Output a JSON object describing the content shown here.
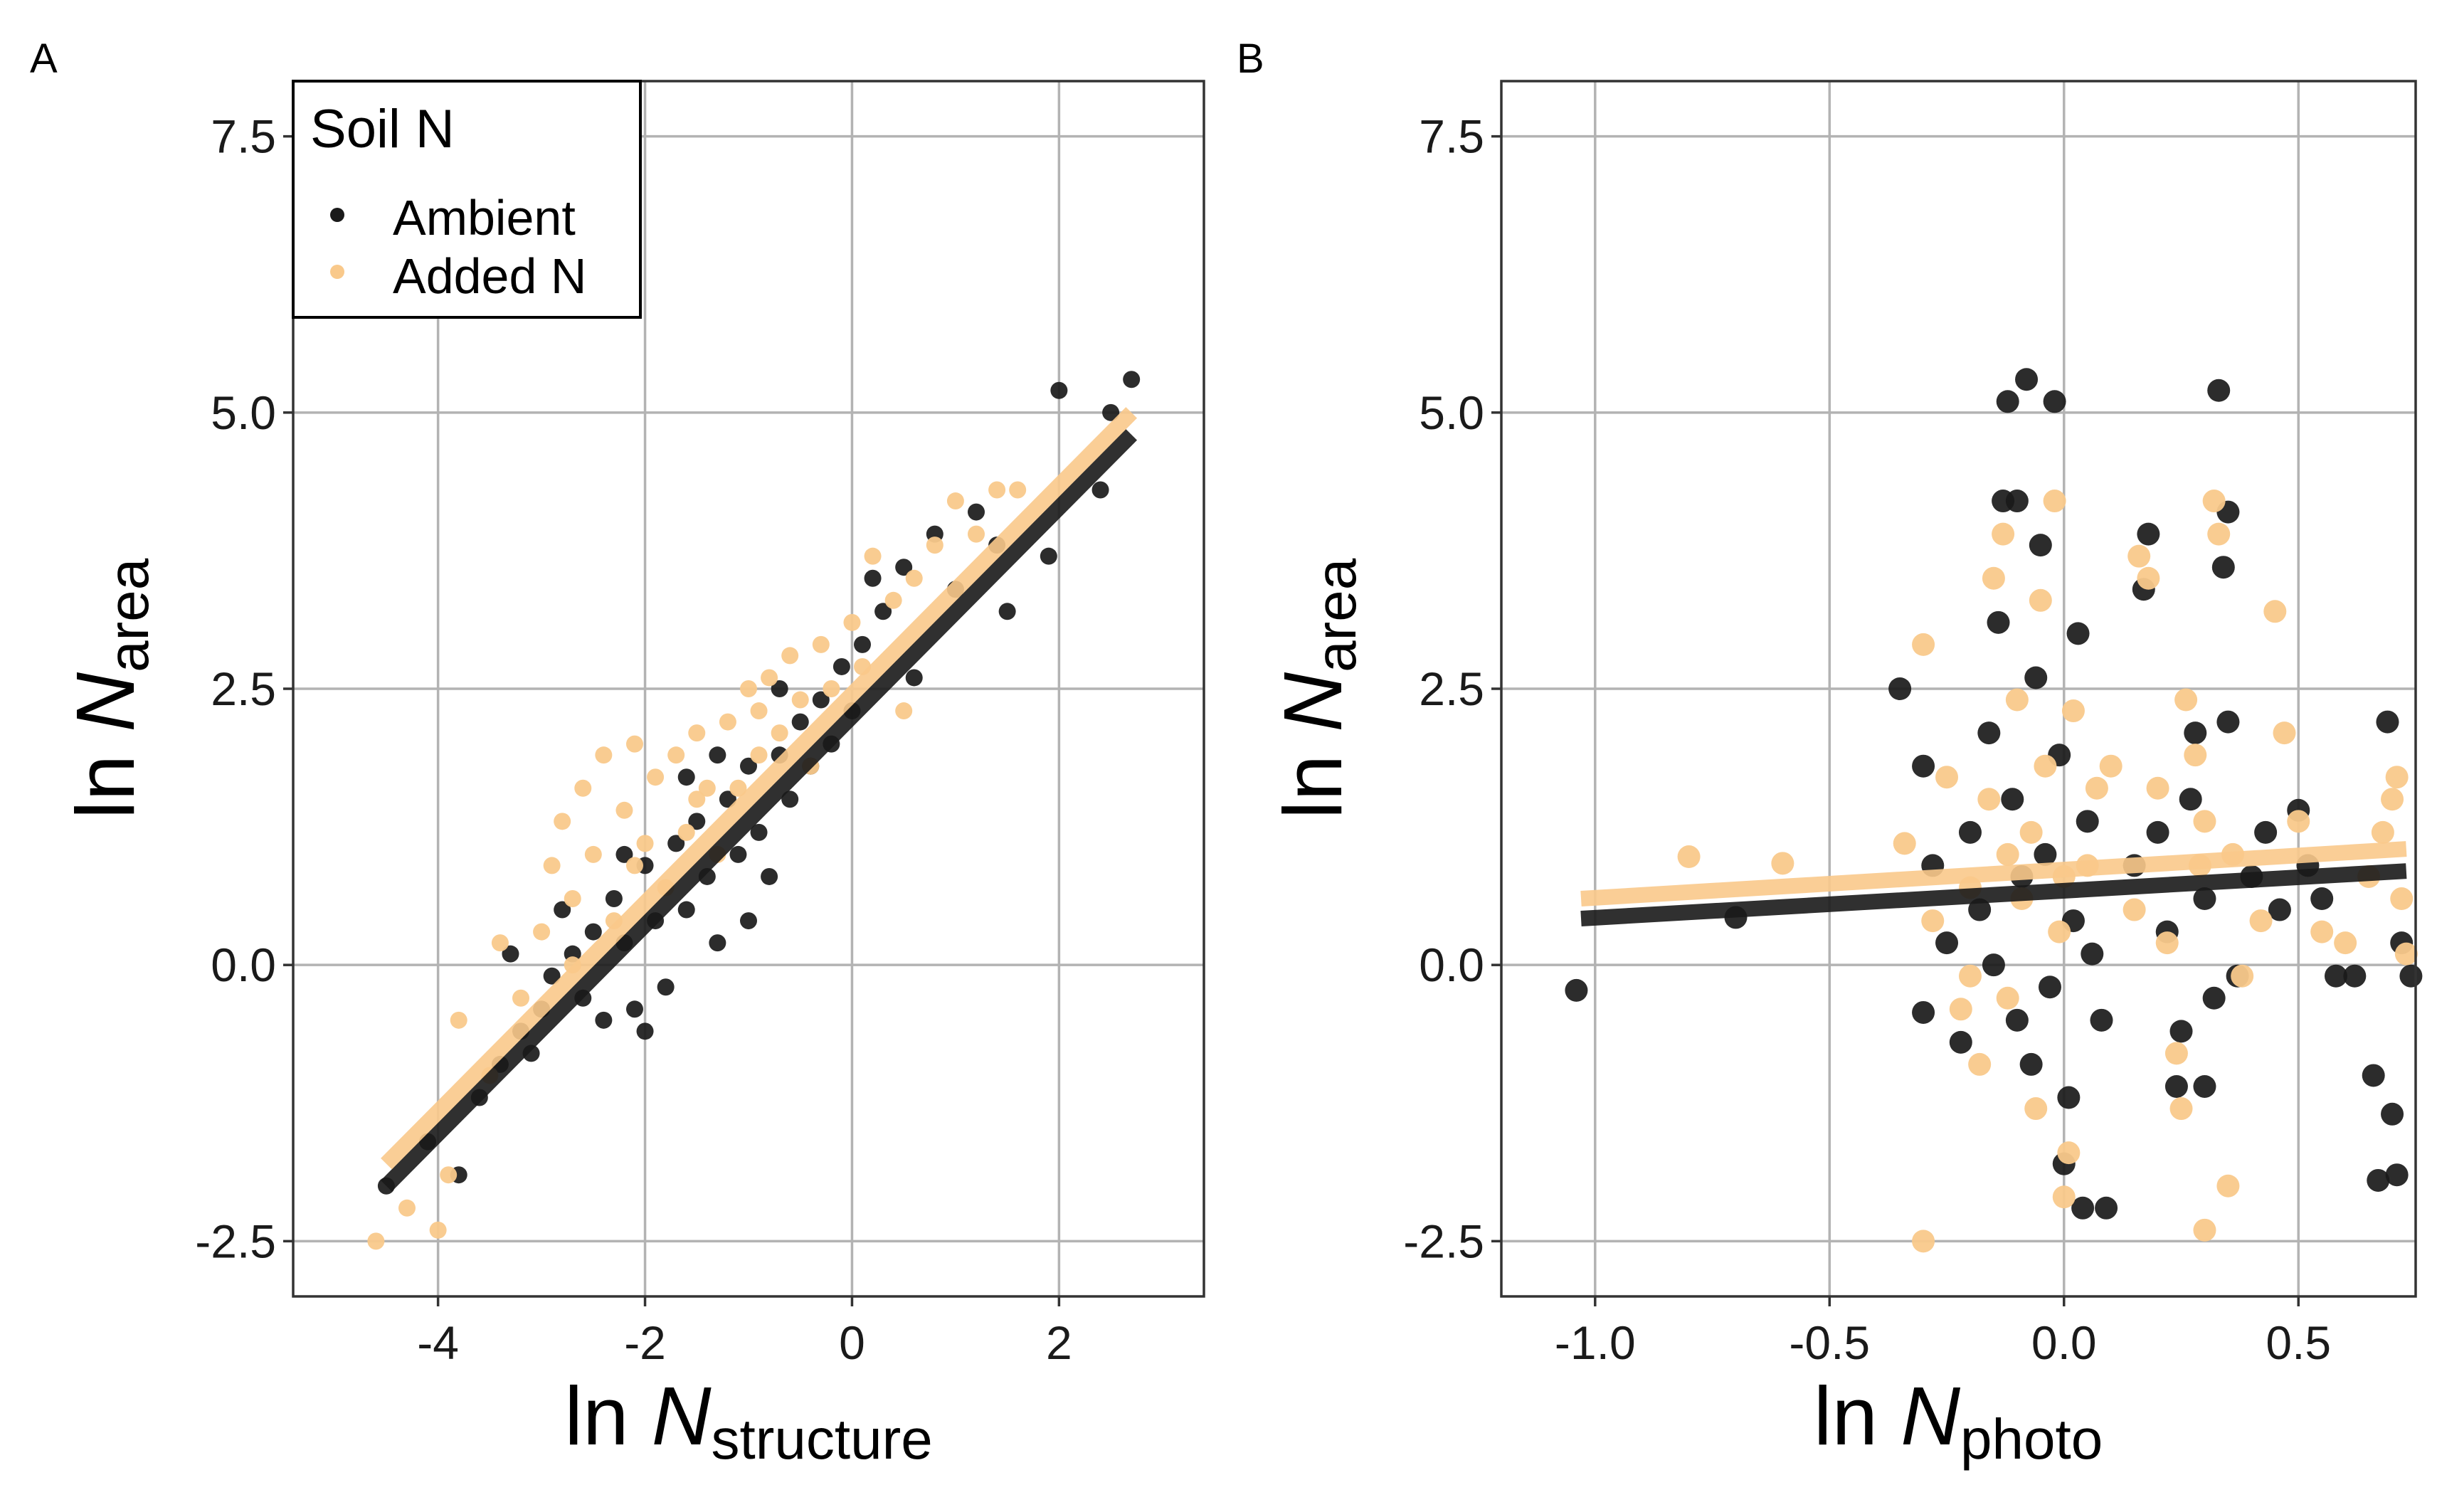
{
  "colors": {
    "ambient": "#1a1a1a",
    "added": "#f9c98b",
    "grid": "#b3b3b3"
  },
  "legend": {
    "title": "Soil N",
    "items": [
      {
        "label": "Ambient",
        "color": "#1a1a1a"
      },
      {
        "label": "Added N",
        "color": "#f9c98b"
      }
    ]
  },
  "chart_data": [
    {
      "panel": "A",
      "type": "scatter",
      "xlabel": {
        "prefix": "ln ",
        "var": "N",
        "sub": "structure"
      },
      "ylabel": {
        "prefix": "ln ",
        "var": "N",
        "sub": "area"
      },
      "xlim": [
        -5.4,
        3.4
      ],
      "ylim": [
        -3.0,
        8.0
      ],
      "xticks": [
        -4,
        -2,
        0,
        2
      ],
      "xtick_labels": [
        "-4",
        "-2",
        "0",
        "2"
      ],
      "yticks": [
        -2.5,
        0.0,
        2.5,
        5.0,
        7.5
      ],
      "ytick_labels": [
        "-2.5",
        "0.0",
        "2.5",
        "5.0",
        "7.5"
      ],
      "grid": true,
      "legend_position": "top-left",
      "fits": [
        {
          "series": "Ambient",
          "x": [
            -4.5,
            2.7
          ],
          "y": [
            -2.0,
            4.8
          ]
        },
        {
          "series": "Added N",
          "x": [
            -4.5,
            2.7
          ],
          "y": [
            -1.8,
            5.0
          ]
        }
      ],
      "series": [
        {
          "name": "Ambient",
          "points": [
            [
              -4.5,
              -2.0
            ],
            [
              -4.1,
              -1.6
            ],
            [
              -3.8,
              -1.9
            ],
            [
              -3.6,
              -1.2
            ],
            [
              -3.4,
              -0.9
            ],
            [
              -3.2,
              -0.6
            ],
            [
              -3.0,
              -0.4
            ],
            [
              -2.9,
              -0.1
            ],
            [
              -2.7,
              0.1
            ],
            [
              -2.6,
              -0.3
            ],
            [
              -2.5,
              0.3
            ],
            [
              -2.4,
              -0.5
            ],
            [
              -2.3,
              0.6
            ],
            [
              -2.2,
              0.2
            ],
            [
              -2.1,
              -0.4
            ],
            [
              -2.0,
              0.9
            ],
            [
              -1.9,
              0.4
            ],
            [
              -1.8,
              -0.2
            ],
            [
              -1.7,
              1.1
            ],
            [
              -1.6,
              0.5
            ],
            [
              -1.5,
              1.3
            ],
            [
              -1.4,
              0.8
            ],
            [
              -1.3,
              0.2
            ],
            [
              -1.2,
              1.5
            ],
            [
              -1.1,
              1.0
            ],
            [
              -1.0,
              1.8
            ],
            [
              -0.9,
              1.2
            ],
            [
              -0.8,
              0.8
            ],
            [
              -0.7,
              1.9
            ],
            [
              -0.6,
              1.5
            ],
            [
              -0.5,
              2.2
            ],
            [
              -0.4,
              1.8
            ],
            [
              -0.3,
              2.4
            ],
            [
              -0.2,
              2.0
            ],
            [
              -0.1,
              2.7
            ],
            [
              0.0,
              2.3
            ],
            [
              0.1,
              2.9
            ],
            [
              0.3,
              3.2
            ],
            [
              0.5,
              3.6
            ],
            [
              0.6,
              2.6
            ],
            [
              0.8,
              3.9
            ],
            [
              1.0,
              3.4
            ],
            [
              1.2,
              4.1
            ],
            [
              1.4,
              3.8
            ],
            [
              1.5,
              3.2
            ],
            [
              1.9,
              3.7
            ],
            [
              2.0,
              5.2
            ],
            [
              2.4,
              4.3
            ],
            [
              2.5,
              5.0
            ],
            [
              2.7,
              5.3
            ],
            [
              -3.3,
              0.1
            ],
            [
              -2.8,
              0.5
            ],
            [
              -2.2,
              1.0
            ],
            [
              -1.6,
              1.7
            ],
            [
              -1.0,
              0.4
            ],
            [
              -0.7,
              2.5
            ],
            [
              -3.1,
              -0.8
            ],
            [
              -2.0,
              -0.6
            ],
            [
              -1.3,
              1.9
            ],
            [
              0.2,
              3.5
            ]
          ]
        },
        {
          "name": "Added N",
          "points": [
            [
              -4.6,
              -2.5
            ],
            [
              -4.3,
              -2.2
            ],
            [
              -4.0,
              -2.4
            ],
            [
              -3.9,
              -1.9
            ],
            [
              -3.8,
              -0.5
            ],
            [
              -3.5,
              -1.0
            ],
            [
              -3.2,
              -0.3
            ],
            [
              -3.0,
              0.3
            ],
            [
              -2.9,
              0.9
            ],
            [
              -2.8,
              1.3
            ],
            [
              -2.7,
              0.6
            ],
            [
              -2.6,
              1.6
            ],
            [
              -2.5,
              1.0
            ],
            [
              -2.4,
              1.9
            ],
            [
              -2.3,
              0.4
            ],
            [
              -2.2,
              1.4
            ],
            [
              -2.1,
              2.0
            ],
            [
              -2.0,
              1.1
            ],
            [
              -1.9,
              1.7
            ],
            [
              -1.8,
              0.7
            ],
            [
              -1.7,
              1.9
            ],
            [
              -1.6,
              1.2
            ],
            [
              -1.5,
              2.1
            ],
            [
              -1.4,
              1.6
            ],
            [
              -1.3,
              1.0
            ],
            [
              -1.2,
              2.2
            ],
            [
              -1.1,
              1.6
            ],
            [
              -1.0,
              2.5
            ],
            [
              -0.9,
              1.9
            ],
            [
              -0.8,
              2.6
            ],
            [
              -0.7,
              2.1
            ],
            [
              -0.6,
              2.8
            ],
            [
              -0.5,
              2.4
            ],
            [
              -0.3,
              2.9
            ],
            [
              -0.2,
              2.5
            ],
            [
              0.0,
              3.1
            ],
            [
              0.1,
              2.7
            ],
            [
              0.2,
              3.7
            ],
            [
              0.4,
              3.3
            ],
            [
              0.5,
              2.3
            ],
            [
              0.6,
              3.5
            ],
            [
              0.8,
              3.8
            ],
            [
              1.0,
              4.2
            ],
            [
              1.2,
              3.9
            ],
            [
              1.4,
              4.3
            ],
            [
              1.6,
              4.3
            ],
            [
              -3.4,
              0.2
            ],
            [
              -2.7,
              0.0
            ],
            [
              -2.1,
              0.9
            ],
            [
              -1.5,
              1.5
            ],
            [
              -0.9,
              2.3
            ],
            [
              -0.4,
              1.8
            ]
          ]
        }
      ]
    },
    {
      "panel": "B",
      "type": "scatter",
      "xlabel": {
        "prefix": "ln ",
        "var": "N",
        "sub": "photo"
      },
      "ylabel": {
        "prefix": "ln ",
        "var": "N",
        "sub": "area"
      },
      "xlim": [
        -1.2,
        0.75
      ],
      "ylim": [
        -3.0,
        8.0
      ],
      "xticks": [
        -1.0,
        -0.5,
        0.0,
        0.5
      ],
      "xtick_labels": [
        "-1.0",
        "-0.5",
        "0.0",
        "0.5"
      ],
      "yticks": [
        -2.5,
        0.0,
        2.5,
        5.0,
        7.5
      ],
      "ytick_labels": [
        "-2.5",
        "0.0",
        "2.5",
        "5.0",
        "7.5"
      ],
      "grid": true,
      "fits": [
        {
          "series": "Ambient",
          "x": [
            -1.03,
            0.73
          ],
          "y": [
            0.42,
            0.85
          ]
        },
        {
          "series": "Added N",
          "x": [
            -1.03,
            0.73
          ],
          "y": [
            0.6,
            1.05
          ]
        }
      ],
      "series": [
        {
          "name": "Ambient",
          "points": [
            [
              -1.04,
              -0.23
            ],
            [
              -0.7,
              0.43
            ],
            [
              -0.35,
              2.5
            ],
            [
              -0.3,
              1.8
            ],
            [
              -0.3,
              -0.43
            ],
            [
              -0.28,
              0.9
            ],
            [
              -0.25,
              0.2
            ],
            [
              -0.22,
              -0.7
            ],
            [
              -0.2,
              1.2
            ],
            [
              -0.18,
              0.5
            ],
            [
              -0.16,
              2.1
            ],
            [
              -0.14,
              3.1
            ],
            [
              -0.13,
              4.2
            ],
            [
              -0.12,
              5.1
            ],
            [
              -0.11,
              1.5
            ],
            [
              -0.1,
              -0.5
            ],
            [
              -0.09,
              0.8
            ],
            [
              -0.08,
              5.3
            ],
            [
              -0.07,
              -0.9
            ],
            [
              -0.06,
              2.6
            ],
            [
              -0.05,
              3.8
            ],
            [
              -0.04,
              1.0
            ],
            [
              -0.03,
              -0.2
            ],
            [
              -0.02,
              5.1
            ],
            [
              -0.01,
              1.9
            ],
            [
              0.0,
              -1.8
            ],
            [
              0.01,
              -1.2
            ],
            [
              0.02,
              0.4
            ],
            [
              0.03,
              3.0
            ],
            [
              0.04,
              -2.2
            ],
            [
              0.05,
              1.3
            ],
            [
              0.06,
              0.1
            ],
            [
              0.08,
              -0.5
            ],
            [
              0.09,
              -2.2
            ],
            [
              0.15,
              0.9
            ],
            [
              0.17,
              3.4
            ],
            [
              0.18,
              3.9
            ],
            [
              0.2,
              1.2
            ],
            [
              0.22,
              0.3
            ],
            [
              0.24,
              -1.1
            ],
            [
              0.25,
              -0.6
            ],
            [
              0.27,
              1.5
            ],
            [
              0.28,
              2.1
            ],
            [
              0.3,
              0.6
            ],
            [
              0.32,
              -0.3
            ],
            [
              0.33,
              5.2
            ],
            [
              0.34,
              3.6
            ],
            [
              0.35,
              2.2
            ],
            [
              0.37,
              -0.1
            ],
            [
              0.4,
              0.8
            ],
            [
              0.43,
              1.2
            ],
            [
              0.46,
              0.5
            ],
            [
              0.5,
              1.4
            ],
            [
              0.52,
              0.9
            ],
            [
              0.55,
              0.6
            ],
            [
              0.58,
              -0.1
            ],
            [
              0.62,
              -0.1
            ],
            [
              0.66,
              -1.0
            ],
            [
              0.67,
              -1.95
            ],
            [
              0.69,
              2.2
            ],
            [
              0.7,
              -1.35
            ],
            [
              0.71,
              -1.9
            ],
            [
              0.72,
              0.2
            ],
            [
              0.74,
              -0.1
            ],
            [
              -0.15,
              0.0
            ],
            [
              0.35,
              4.1
            ],
            [
              -0.1,
              4.2
            ],
            [
              0.3,
              -1.1
            ]
          ]
        },
        {
          "name": "Added N",
          "points": [
            [
              -0.8,
              0.98
            ],
            [
              -0.6,
              0.92
            ],
            [
              -0.34,
              1.1
            ],
            [
              -0.3,
              2.9
            ],
            [
              -0.3,
              -2.5
            ],
            [
              -0.28,
              0.4
            ],
            [
              -0.25,
              1.7
            ],
            [
              -0.22,
              -0.4
            ],
            [
              -0.2,
              0.7
            ],
            [
              -0.18,
              -0.9
            ],
            [
              -0.16,
              1.5
            ],
            [
              -0.15,
              3.5
            ],
            [
              -0.13,
              3.9
            ],
            [
              -0.12,
              -0.3
            ],
            [
              -0.1,
              2.4
            ],
            [
              -0.09,
              0.6
            ],
            [
              -0.07,
              1.2
            ],
            [
              -0.06,
              -1.3
            ],
            [
              -0.05,
              3.3
            ],
            [
              -0.04,
              1.8
            ],
            [
              -0.02,
              4.2
            ],
            [
              -0.01,
              0.3
            ],
            [
              0.0,
              -2.1
            ],
            [
              0.01,
              -1.7
            ],
            [
              0.02,
              2.3
            ],
            [
              0.05,
              0.9
            ],
            [
              0.07,
              1.6
            ],
            [
              0.15,
              0.5
            ],
            [
              0.16,
              3.7
            ],
            [
              0.18,
              3.5
            ],
            [
              0.2,
              1.6
            ],
            [
              0.22,
              0.2
            ],
            [
              0.24,
              -0.8
            ],
            [
              0.25,
              -1.3
            ],
            [
              0.26,
              2.4
            ],
            [
              0.28,
              1.9
            ],
            [
              0.29,
              0.9
            ],
            [
              0.3,
              -2.4
            ],
            [
              0.32,
              4.2
            ],
            [
              0.33,
              3.9
            ],
            [
              0.35,
              -2.0
            ],
            [
              0.36,
              1.0
            ],
            [
              0.38,
              -0.1
            ],
            [
              0.42,
              0.4
            ],
            [
              0.45,
              3.2
            ],
            [
              0.47,
              2.1
            ],
            [
              0.5,
              1.3
            ],
            [
              0.55,
              0.3
            ],
            [
              0.6,
              0.2
            ],
            [
              0.65,
              0.8
            ],
            [
              0.68,
              1.2
            ],
            [
              0.7,
              1.5
            ],
            [
              0.71,
              1.7
            ],
            [
              0.72,
              0.6
            ],
            [
              0.73,
              0.1
            ],
            [
              -0.12,
              1.0
            ],
            [
              0.0,
              0.8
            ],
            [
              0.3,
              1.3
            ],
            [
              -0.2,
              -0.1
            ],
            [
              0.1,
              1.8
            ]
          ]
        }
      ]
    }
  ]
}
